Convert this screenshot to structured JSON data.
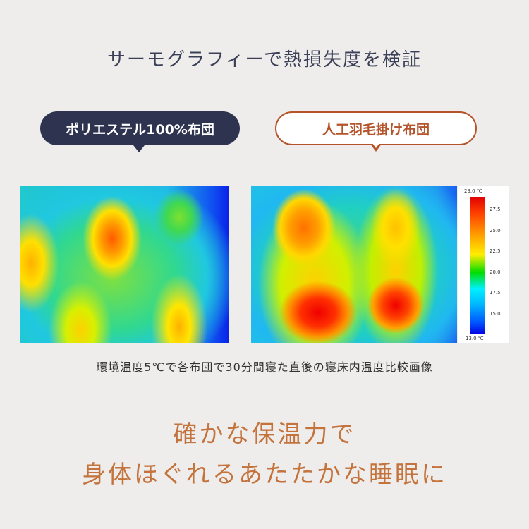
{
  "title": "サーモグラフィーで熱損失度を検証",
  "comparison": [
    {
      "label": "ポリエステル100%布団"
    },
    {
      "label": "人工羽毛掛け布団"
    }
  ],
  "legend": {
    "max": "29.0 ℃",
    "min": "13.0 ℃",
    "ticks": [
      "27.5",
      "25.0",
      "22.5",
      "20.0",
      "17.5",
      "15.0"
    ]
  },
  "caption": "環境温度5℃で各布団で30分間寝た直後の寝床内温度比較画像",
  "headline": [
    "確かな保温力で",
    "身体ほぐれるあたたかな睡眠に"
  ],
  "colors": {
    "dark_bubble": "#2e3350",
    "accent": "#b5542a",
    "headline": "#c4733d"
  }
}
